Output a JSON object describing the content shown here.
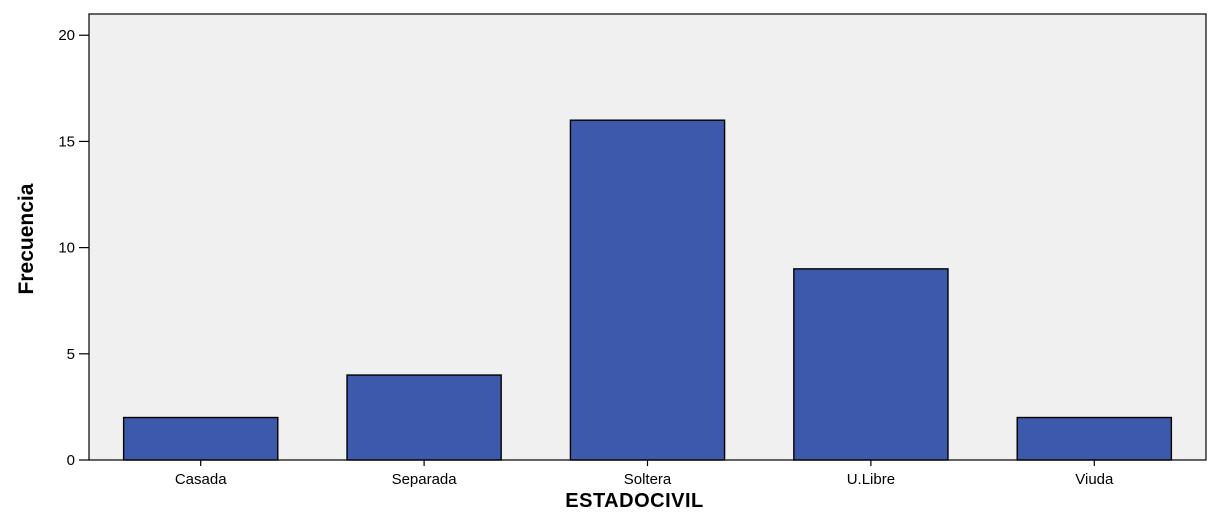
{
  "chart_data": {
    "type": "bar",
    "title": "",
    "xlabel": "ESTADOCIVIL",
    "ylabel": "Frecuencia",
    "categories": [
      "Casada",
      "Separada",
      "Soltera",
      "U.Libre",
      "Viuda"
    ],
    "values": [
      2,
      4,
      16,
      9,
      2
    ],
    "ylim": [
      0,
      21
    ],
    "yticks": [
      0,
      5,
      10,
      15,
      20
    ],
    "grid": false,
    "legend": "none",
    "colors": {
      "bar_fill": "#3d59ab",
      "bar_stroke": "#000000",
      "plot_background": "#f0f0f0",
      "axis": "#000000"
    }
  }
}
